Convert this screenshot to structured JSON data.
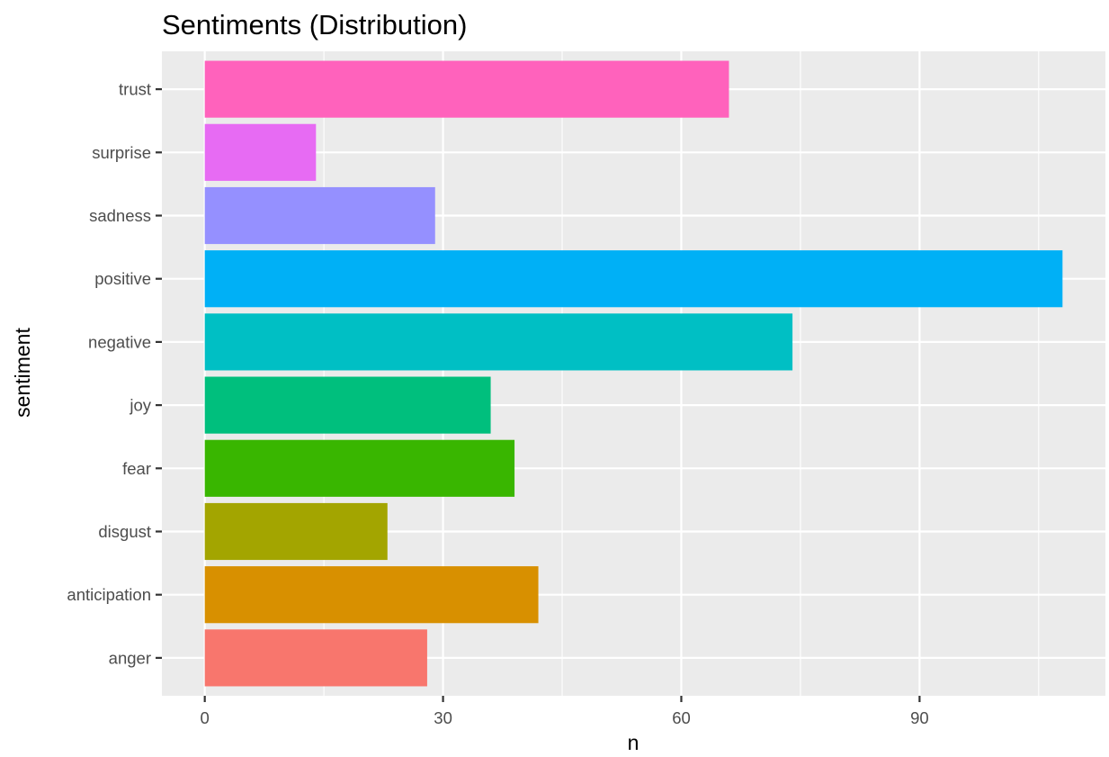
{
  "chart_data": {
    "type": "bar",
    "orientation": "horizontal",
    "title": "Sentiments (Distribution)",
    "xlabel": "n",
    "ylabel": "sentiment",
    "categories": [
      "anger",
      "anticipation",
      "disgust",
      "fear",
      "joy",
      "negative",
      "positive",
      "sadness",
      "surprise",
      "trust"
    ],
    "values": [
      28,
      42,
      23,
      39,
      36,
      74,
      108,
      29,
      14,
      66
    ],
    "colors": [
      "#F8766D",
      "#D89000",
      "#A3A500",
      "#39B600",
      "#00BF7D",
      "#00BFC4",
      "#00B0F6",
      "#9590FF",
      "#E76BF3",
      "#FF62BC"
    ],
    "xlim": [
      -5.4,
      113.4
    ],
    "xticks": [
      0,
      30,
      60,
      90
    ],
    "xtick_labels": [
      "0",
      "30",
      "60",
      "90"
    ],
    "grid": true,
    "legend": "none",
    "panel_background": "#EBEBEB",
    "grid_color": "#FFFFFF"
  }
}
